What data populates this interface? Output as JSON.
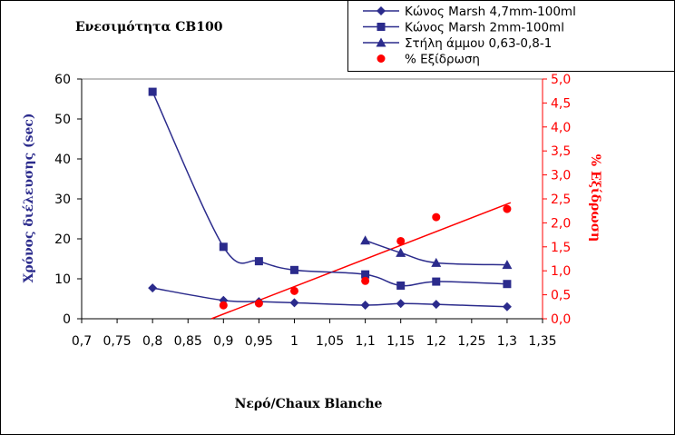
{
  "chart_data": {
    "type": "line",
    "title": "Ενεσιμότητα CB100",
    "xlabel": "Νερό/Chaux Blanche",
    "ylabel": "Χρόνος διέλευσης (sec)",
    "y2label": "% Εξίδρωση",
    "xlim": [
      0.7,
      1.35
    ],
    "ylim": [
      0,
      60
    ],
    "y2lim": [
      0,
      5
    ],
    "x_ticks": [
      "0,7",
      "0,75",
      "0,8",
      "0,85",
      "0,9",
      "0,95",
      "1",
      "1,05",
      "1,1",
      "1,15",
      "1,2",
      "1,25",
      "1,3",
      "1,35"
    ],
    "y_ticks": [
      "0",
      "10",
      "20",
      "30",
      "40",
      "50",
      "60"
    ],
    "y2_ticks": [
      "0,0",
      "0,5",
      "1,0",
      "1,5",
      "2,0",
      "2,5",
      "3,0",
      "3,5",
      "4,0",
      "4,5",
      "5,0"
    ],
    "legend_position": "top-right",
    "colors": {
      "series": "#2b2b8c",
      "bleeding": "#ff0000",
      "trendline": "#ff0000"
    },
    "series": [
      {
        "name": "Κώνος Marsh 4,7mm-100ml",
        "marker": "diamond",
        "axis": "left",
        "x": [
          0.8,
          0.9,
          0.95,
          1.0,
          1.1,
          1.15,
          1.2,
          1.3
        ],
        "y": [
          7.7,
          4.6,
          4.3,
          4.0,
          3.4,
          3.8,
          3.6,
          3.0
        ]
      },
      {
        "name": "Κώνος Marsh  2mm-100ml",
        "marker": "square",
        "axis": "left",
        "x": [
          0.8,
          0.9,
          0.95,
          1.0,
          1.1,
          1.15,
          1.2,
          1.3
        ],
        "y": [
          56.8,
          18.0,
          14.4,
          12.2,
          11.1,
          8.3,
          9.3,
          8.7
        ]
      },
      {
        "name": "Στήλη άμμου 0,63-0,8-1",
        "marker": "triangle",
        "axis": "left",
        "x": [
          1.1,
          1.15,
          1.2,
          1.3
        ],
        "y": [
          19.6,
          16.5,
          14.0,
          13.5
        ]
      },
      {
        "name": "% Εξίδρωση",
        "marker": "circle",
        "axis": "right",
        "x": [
          0.9,
          0.95,
          1.0,
          1.1,
          1.15,
          1.2,
          1.3
        ],
        "y": [
          0.28,
          0.32,
          0.58,
          0.79,
          1.62,
          2.12,
          2.29
        ],
        "trendline": {
          "x": [
            0.883,
            1.305
          ],
          "y": [
            0.0,
            2.42
          ]
        }
      }
    ]
  }
}
